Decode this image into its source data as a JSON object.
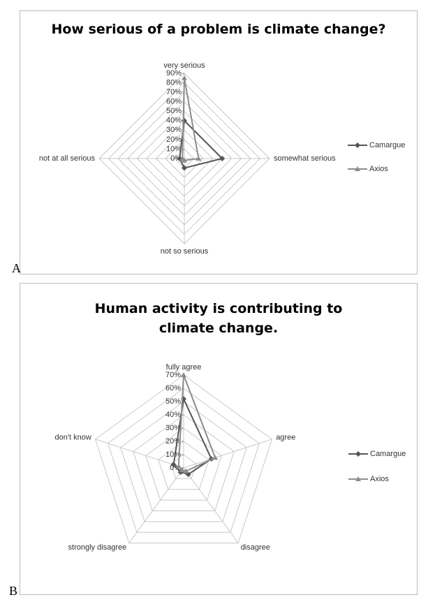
{
  "chart_data": [
    {
      "type": "radar",
      "label": "A",
      "title": "How serious of a problem is climate change?",
      "categories": [
        "very serious",
        "somewhat serious",
        "not so serious",
        "not at all serious"
      ],
      "series": [
        {
          "name": "Camargue",
          "color": "#555555",
          "marker": "diamond",
          "values": [
            40,
            40,
            10,
            5
          ]
        },
        {
          "name": "Axios",
          "color": "#8c8c8c",
          "marker": "triangle",
          "values": [
            85,
            15,
            2,
            2
          ]
        }
      ],
      "ylim": [
        0,
        90
      ],
      "yticks": [
        {
          "value": 0,
          "label": "0%"
        },
        {
          "value": 10,
          "label": "10%"
        },
        {
          "value": 20,
          "label": "20%"
        },
        {
          "value": 30,
          "label": "30%"
        },
        {
          "value": 40,
          "label": "40%"
        },
        {
          "value": 50,
          "label": "50%"
        },
        {
          "value": 60,
          "label": "60%"
        },
        {
          "value": 70,
          "label": "70%"
        },
        {
          "value": 80,
          "label": "80%"
        },
        {
          "value": 90,
          "label": "90%"
        }
      ],
      "grid": true,
      "legend": "right"
    },
    {
      "type": "radar",
      "label": "B",
      "title": "Human activity is contributing to climate change.",
      "categories": [
        "fully agree",
        "agree",
        "disagree",
        "strongly disagree",
        "don't know"
      ],
      "series": [
        {
          "name": "Camargue",
          "color": "#555555",
          "marker": "diamond",
          "values": [
            52,
            22,
            6,
            4,
            8
          ]
        },
        {
          "name": "Axios",
          "color": "#8c8c8c",
          "marker": "triangle",
          "values": [
            70,
            25,
            3,
            2,
            4
          ]
        }
      ],
      "ylim": [
        0,
        70
      ],
      "yticks": [
        {
          "value": 0,
          "label": "0%"
        },
        {
          "value": 10,
          "label": "10%"
        },
        {
          "value": 20,
          "label": "20%"
        },
        {
          "value": 30,
          "label": "30%"
        },
        {
          "value": 40,
          "label": "40%"
        },
        {
          "value": 50,
          "label": "50%"
        },
        {
          "value": 60,
          "label": "60%"
        },
        {
          "value": 70,
          "label": "70%"
        }
      ],
      "grid": true,
      "legend": "right"
    }
  ]
}
